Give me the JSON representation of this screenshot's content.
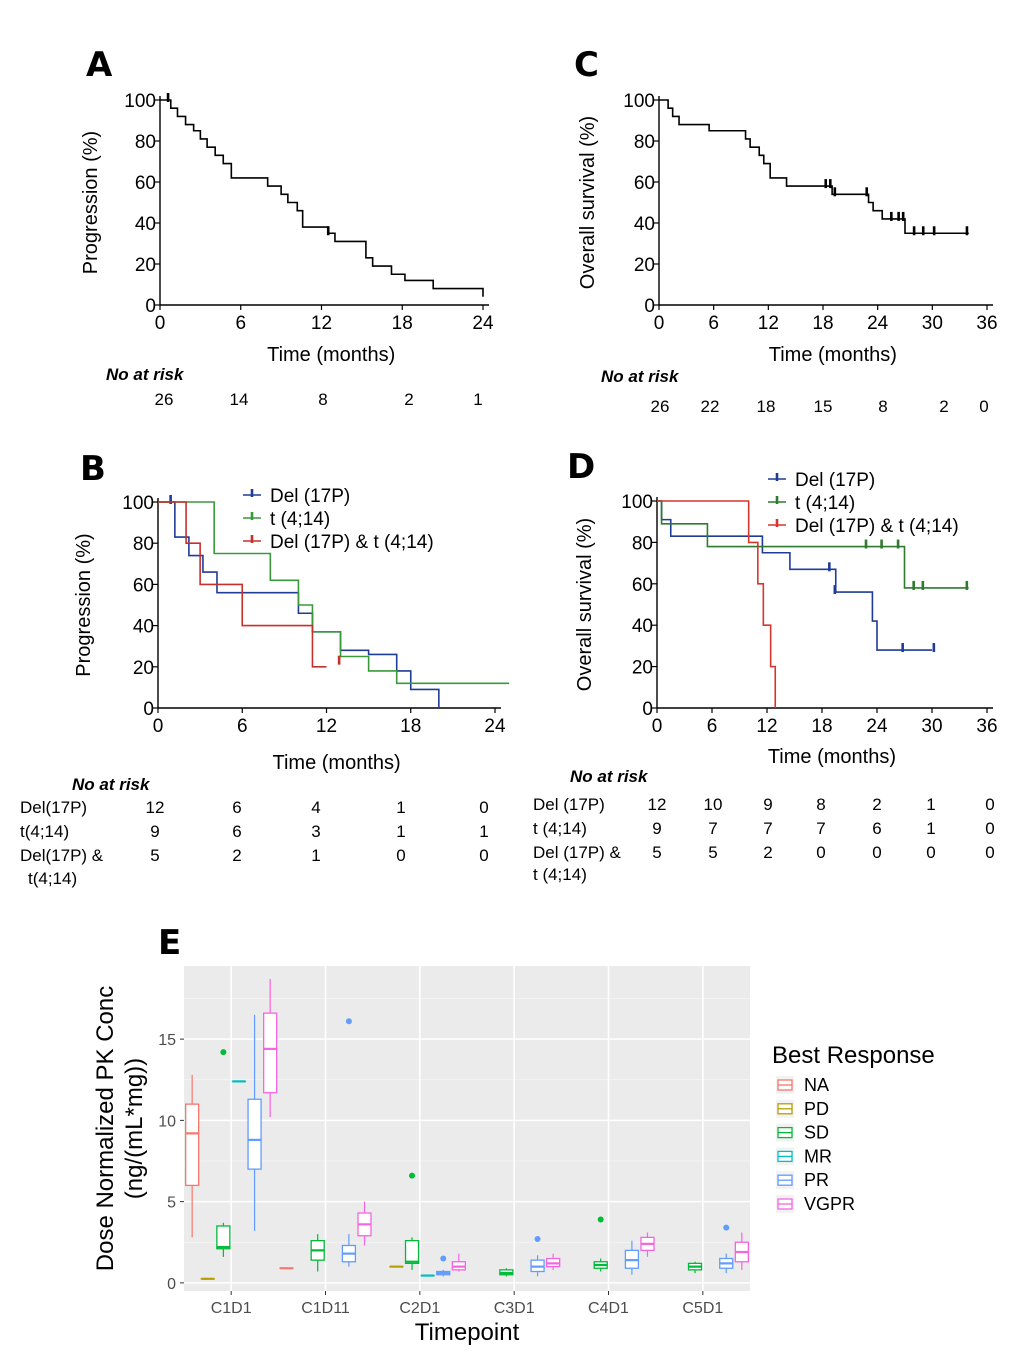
{
  "chart_data": [
    {
      "panel": "A",
      "type": "line",
      "xlabel": "Time (months)",
      "ylabel": "Progression (%)",
      "xlim": [
        0,
        24
      ],
      "ylim": [
        0,
        100
      ],
      "xticks": [
        0,
        6,
        12,
        18,
        24
      ],
      "yticks": [
        0,
        20,
        40,
        60,
        80,
        100
      ],
      "risk_title": "No at risk",
      "risk_values": [
        "26",
        "14",
        "8",
        "2",
        "1"
      ],
      "series": [
        {
          "color": "#000000",
          "x": [
            0,
            0.8,
            1.3,
            1.9,
            2.5,
            3.0,
            3.5,
            4.1,
            4.7,
            5.3,
            8.0,
            9.0,
            9.5,
            10.2,
            10.6,
            12.5,
            13.0,
            15.3,
            15.8,
            17.2,
            18.2,
            20.3,
            24.0
          ],
          "y": [
            100,
            96,
            92,
            88,
            85,
            81,
            77,
            73,
            69,
            62,
            58,
            54,
            50,
            46,
            38,
            35,
            31,
            23,
            19,
            15,
            12,
            8,
            4
          ],
          "censor_x": [
            0.6,
            12.5
          ],
          "censor_y": [
            100,
            35
          ]
        }
      ]
    },
    {
      "panel": "B",
      "type": "line",
      "xlabel": "Time (months)",
      "ylabel": "Progression (%)",
      "xlim": [
        0,
        24
      ],
      "ylim": [
        0,
        100
      ],
      "xticks": [
        0,
        6,
        12,
        18,
        24
      ],
      "yticks": [
        0,
        20,
        40,
        60,
        80,
        100
      ],
      "risk_title": "No at risk",
      "risk_rows": [
        {
          "label": "Del(17P)",
          "values": [
            "12",
            "6",
            "4",
            "1",
            "0"
          ]
        },
        {
          "label": "t(4;14)",
          "values": [
            "9",
            "6",
            "3",
            "1",
            "1"
          ]
        },
        {
          "label": "Del(17P) &",
          "label2": "t(4;14)",
          "values": [
            "5",
            "2",
            "1",
            "0",
            "0"
          ]
        }
      ],
      "series": [
        {
          "name": "Del (17P)",
          "color": "#1f3c96",
          "x": [
            0,
            1.2,
            2.2,
            3.2,
            4.2,
            10.0,
            11.0,
            13.0,
            15.0,
            17.0,
            18.0,
            20.0
          ],
          "y": [
            100,
            83,
            74,
            66,
            56,
            46,
            37,
            28,
            26,
            18,
            9,
            0
          ],
          "censor_x": [
            0.9
          ],
          "censor_y": [
            100
          ]
        },
        {
          "name": "t (4;14)",
          "color": "#3a9a3a",
          "x": [
            0,
            4.0,
            8.0,
            10.0,
            11.0,
            13.0,
            15.0,
            17.0,
            25.0
          ],
          "y": [
            100,
            75,
            62,
            50,
            37,
            25,
            18,
            12,
            12
          ],
          "censor_x": [],
          "censor_y": []
        },
        {
          "name": "Del (17P) & t (4;14)",
          "color": "#c6302b",
          "x": [
            0,
            2.0,
            3.0,
            4.0,
            6.0,
            11.0,
            12.0
          ],
          "y": [
            100,
            80,
            60,
            60,
            40,
            20,
            20
          ],
          "censor_x": [
            12.9
          ],
          "censor_y": [
            22
          ]
        }
      ]
    },
    {
      "panel": "C",
      "type": "line",
      "xlabel": "Time (months)",
      "ylabel": "Overall survival (%)",
      "xlim": [
        0,
        36
      ],
      "ylim": [
        0,
        100
      ],
      "xticks": [
        0,
        6,
        12,
        18,
        24,
        30,
        36
      ],
      "yticks": [
        0,
        20,
        40,
        60,
        80,
        100
      ],
      "risk_title": "No at risk",
      "risk_values": [
        "26",
        "22",
        "18",
        "15",
        "8",
        "2",
        "0"
      ],
      "series": [
        {
          "color": "#000000",
          "x": [
            0,
            1.0,
            1.5,
            2.2,
            5.5,
            9.5,
            10.0,
            11.0,
            11.5,
            12.2,
            14.0,
            19.0,
            23.0,
            23.5,
            24.5,
            27.0,
            34.0
          ],
          "y": [
            100,
            96,
            92,
            88,
            85,
            81,
            77,
            73,
            69,
            62,
            58,
            54,
            50,
            46,
            42,
            35,
            35
          ],
          "censor_x": [
            18.3,
            18.8,
            19.3,
            22.8,
            25.5,
            26.3,
            26.8,
            28.0,
            29.0,
            30.2,
            33.8
          ],
          "censor_y": [
            58,
            58,
            54,
            54,
            42,
            42,
            42,
            35,
            35,
            35,
            35
          ]
        }
      ]
    },
    {
      "panel": "D",
      "type": "line",
      "xlabel": "Time (months)",
      "ylabel": "Overall survival (%)",
      "xlim": [
        0,
        36
      ],
      "ylim": [
        0,
        100
      ],
      "xticks": [
        0,
        6,
        12,
        18,
        24,
        30,
        36
      ],
      "yticks": [
        0,
        20,
        40,
        60,
        80,
        100
      ],
      "risk_title": "No at risk",
      "risk_rows": [
        {
          "label": "Del (17P)",
          "values": [
            "12",
            "10",
            "9",
            "8",
            "2",
            "1",
            "0"
          ]
        },
        {
          "label": "t (4;14)",
          "values": [
            "9",
            "7",
            "7",
            "7",
            "6",
            "1",
            "0"
          ]
        },
        {
          "label": "Del (17P) &",
          "label2": "t (4;14)",
          "values": [
            "5",
            "5",
            "2",
            "0",
            "0",
            "0",
            "0"
          ]
        }
      ],
      "series": [
        {
          "name": "Del (17P)",
          "color": "#1f3c96",
          "x": [
            0,
            0.5,
            1.5,
            8.0,
            11.5,
            14.5,
            19.5,
            23.5,
            24.0,
            30.0
          ],
          "y": [
            100,
            91,
            83,
            83,
            75,
            67,
            56,
            42,
            28,
            28
          ],
          "censor_x": [
            18.8,
            19.4,
            26.8,
            30.2
          ],
          "censor_y": [
            67,
            56,
            28,
            28
          ]
        },
        {
          "name": "t (4;14)",
          "color": "#2e7a2e",
          "x": [
            0,
            0.5,
            1.5,
            5.5,
            27.0,
            34.0
          ],
          "y": [
            100,
            89,
            89,
            78,
            58,
            58
          ],
          "censor_x": [
            22.8,
            24.5,
            26.3,
            28.0,
            29.0,
            33.8
          ],
          "censor_y": [
            78,
            78,
            78,
            58,
            58,
            58
          ]
        },
        {
          "name": "Del (17P) & t (4;14)",
          "color": "#d7362e",
          "x": [
            0,
            10.0,
            11.0,
            11.6,
            12.4,
            12.9
          ],
          "y": [
            100,
            80,
            60,
            40,
            20,
            0
          ],
          "censor_x": [],
          "censor_y": []
        }
      ]
    },
    {
      "panel": "E",
      "type": "box",
      "xlabel": "Timepoint",
      "ylabel": "Dose Normalized PK Conc",
      "ylabel2": "(ng/(mL*mg))",
      "ylim": [
        -0.5,
        19.5
      ],
      "yticks": [
        0,
        5,
        10,
        15
      ],
      "categories": [
        "C1D1",
        "C1D11",
        "C2D1",
        "C3D1",
        "C4D1",
        "C5D1"
      ],
      "legend_title": "Best Response",
      "groups": [
        {
          "name": "NA",
          "color": "#f8766d"
        },
        {
          "name": "PD",
          "color": "#b79f00"
        },
        {
          "name": "SD",
          "color": "#00ba38"
        },
        {
          "name": "MR",
          "color": "#00bfc4"
        },
        {
          "name": "PR",
          "color": "#619cff"
        },
        {
          "name": "VGPR",
          "color": "#f564e3"
        }
      ],
      "boxes": [
        {
          "cat": "C1D1",
          "group": "NA",
          "q1": 6.0,
          "median": 9.2,
          "q3": 11.0,
          "lo": 2.8,
          "hi": 12.8,
          "outliers": []
        },
        {
          "cat": "C1D1",
          "group": "PD",
          "q1": 0.25,
          "median": 0.25,
          "q3": 0.25,
          "lo": 0.25,
          "hi": 0.25,
          "outliers": []
        },
        {
          "cat": "C1D1",
          "group": "SD",
          "q1": 2.1,
          "median": 2.2,
          "q3": 3.5,
          "lo": 1.6,
          "hi": 3.7,
          "outliers": [
            14.2
          ]
        },
        {
          "cat": "C1D1",
          "group": "MR",
          "q1": 12.4,
          "median": 12.4,
          "q3": 12.4,
          "lo": 12.4,
          "hi": 12.4,
          "outliers": []
        },
        {
          "cat": "C1D1",
          "group": "PR",
          "q1": 7.0,
          "median": 8.8,
          "q3": 11.3,
          "lo": 3.2,
          "hi": 16.5,
          "outliers": []
        },
        {
          "cat": "C1D1",
          "group": "VGPR",
          "q1": 11.7,
          "median": 14.4,
          "q3": 16.6,
          "lo": 10.2,
          "hi": 18.7,
          "outliers": []
        },
        {
          "cat": "C1D11",
          "group": "NA",
          "q1": 0.9,
          "median": 0.9,
          "q3": 0.9,
          "lo": 0.9,
          "hi": 0.9,
          "outliers": []
        },
        {
          "cat": "C1D11",
          "group": "SD",
          "q1": 1.4,
          "median": 2.0,
          "q3": 2.6,
          "lo": 0.7,
          "hi": 3.0,
          "outliers": []
        },
        {
          "cat": "C1D11",
          "group": "PR",
          "q1": 1.3,
          "median": 1.8,
          "q3": 2.3,
          "lo": 1.0,
          "hi": 3.0,
          "outliers": [
            16.1
          ]
        },
        {
          "cat": "C1D11",
          "group": "VGPR",
          "q1": 2.9,
          "median": 3.6,
          "q3": 4.3,
          "lo": 2.3,
          "hi": 5.0,
          "outliers": []
        },
        {
          "cat": "C2D1",
          "group": "PD",
          "q1": 1.0,
          "median": 1.0,
          "q3": 1.0,
          "lo": 1.0,
          "hi": 1.0,
          "outliers": []
        },
        {
          "cat": "C2D1",
          "group": "SD",
          "q1": 1.2,
          "median": 1.3,
          "q3": 2.6,
          "lo": 0.8,
          "hi": 2.8,
          "outliers": [
            6.6
          ]
        },
        {
          "cat": "C2D1",
          "group": "MR",
          "q1": 0.45,
          "median": 0.45,
          "q3": 0.45,
          "lo": 0.45,
          "hi": 0.45,
          "outliers": []
        },
        {
          "cat": "C2D1",
          "group": "PR",
          "q1": 0.5,
          "median": 0.6,
          "q3": 0.7,
          "lo": 0.4,
          "hi": 0.8,
          "outliers": [
            1.5
          ]
        },
        {
          "cat": "C2D1",
          "group": "VGPR",
          "q1": 0.8,
          "median": 1.0,
          "q3": 1.3,
          "lo": 0.7,
          "hi": 1.8,
          "outliers": []
        },
        {
          "cat": "C3D1",
          "group": "SD",
          "q1": 0.5,
          "median": 0.6,
          "q3": 0.8,
          "lo": 0.4,
          "hi": 0.9,
          "outliers": []
        },
        {
          "cat": "C3D1",
          "group": "PR",
          "q1": 0.7,
          "median": 1.0,
          "q3": 1.4,
          "lo": 0.4,
          "hi": 1.7,
          "outliers": [
            2.7
          ]
        },
        {
          "cat": "C3D1",
          "group": "VGPR",
          "q1": 1.0,
          "median": 1.2,
          "q3": 1.5,
          "lo": 0.8,
          "hi": 1.8,
          "outliers": []
        },
        {
          "cat": "C4D1",
          "group": "SD",
          "q1": 0.9,
          "median": 1.1,
          "q3": 1.3,
          "lo": 0.7,
          "hi": 1.5,
          "outliers": [
            3.9
          ]
        },
        {
          "cat": "C4D1",
          "group": "PR",
          "q1": 0.9,
          "median": 1.4,
          "q3": 2.0,
          "lo": 0.5,
          "hi": 2.6,
          "outliers": []
        },
        {
          "cat": "C4D1",
          "group": "VGPR",
          "q1": 2.0,
          "median": 2.4,
          "q3": 2.8,
          "lo": 1.6,
          "hi": 3.1,
          "outliers": []
        },
        {
          "cat": "C5D1",
          "group": "SD",
          "q1": 0.8,
          "median": 1.0,
          "q3": 1.2,
          "lo": 0.6,
          "hi": 1.3,
          "outliers": []
        },
        {
          "cat": "C5D1",
          "group": "PR",
          "q1": 0.9,
          "median": 1.2,
          "q3": 1.5,
          "lo": 0.6,
          "hi": 1.8,
          "outliers": [
            3.4
          ]
        },
        {
          "cat": "C5D1",
          "group": "VGPR",
          "q1": 1.3,
          "median": 1.9,
          "q3": 2.5,
          "lo": 0.8,
          "hi": 3.1,
          "outliers": []
        }
      ]
    }
  ]
}
